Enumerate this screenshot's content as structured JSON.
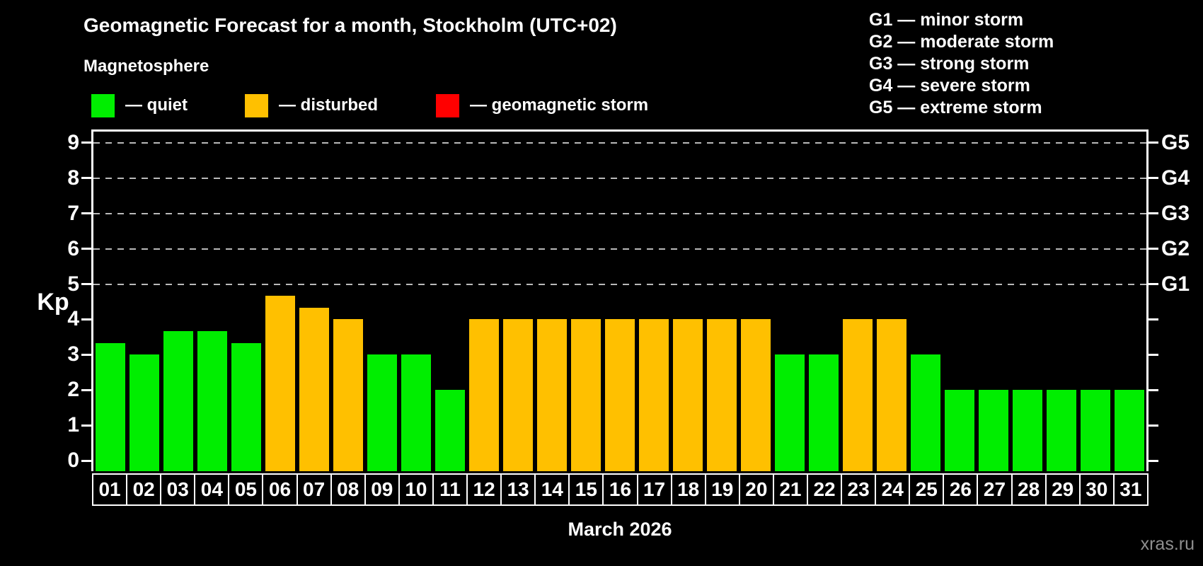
{
  "header": {
    "title": "Geomagnetic Forecast for a month, Stockholm (UTC+02)",
    "subtitle": "Magnetosphere"
  },
  "status_legend": [
    {
      "key": "quiet",
      "label": "— quiet",
      "color": "#00ee00"
    },
    {
      "key": "disturbed",
      "label": "— disturbed",
      "color": "#ffc000"
    },
    {
      "key": "storm",
      "label": "— geomagnetic storm",
      "color": "#ff0000"
    }
  ],
  "storm_scale_legend": [
    "G1 — minor storm",
    "G2 — moderate storm",
    "G3 — strong storm",
    "G4 — severe storm",
    "G5 — extreme storm"
  ],
  "watermark": "xras.ru",
  "chart_data": {
    "type": "bar",
    "title": "Geomagnetic Forecast for a month, Stockholm (UTC+02)",
    "xlabel": "March 2026",
    "ylabel": "Kp",
    "ylim": [
      0,
      9
    ],
    "y_ticks": [
      0,
      1,
      2,
      3,
      4,
      5,
      6,
      7,
      8,
      9
    ],
    "gridlines_at": [
      5,
      6,
      7,
      8,
      9
    ],
    "grid": "dashed, only at storm levels 5-9",
    "legend_position": "top",
    "right_axis_labels": [
      {
        "kp": 5,
        "label": "G1"
      },
      {
        "kp": 6,
        "label": "G2"
      },
      {
        "kp": 7,
        "label": "G3"
      },
      {
        "kp": 8,
        "label": "G4"
      },
      {
        "kp": 9,
        "label": "G5"
      }
    ],
    "categories": [
      "01",
      "02",
      "03",
      "04",
      "05",
      "06",
      "07",
      "08",
      "09",
      "10",
      "11",
      "12",
      "13",
      "14",
      "15",
      "16",
      "17",
      "18",
      "19",
      "20",
      "21",
      "22",
      "23",
      "24",
      "25",
      "26",
      "27",
      "28",
      "29",
      "30",
      "31"
    ],
    "series": [
      {
        "name": "Kp forecast",
        "values": [
          3.33,
          3,
          3.67,
          3.67,
          3.33,
          4.67,
          4.33,
          4,
          3,
          3,
          2,
          4,
          4,
          4,
          4,
          4,
          4,
          4,
          4,
          4,
          3,
          3,
          4,
          4,
          3,
          2,
          2,
          2,
          2,
          2,
          2
        ],
        "statuses": [
          "quiet",
          "quiet",
          "quiet",
          "quiet",
          "quiet",
          "disturbed",
          "disturbed",
          "disturbed",
          "quiet",
          "quiet",
          "quiet",
          "disturbed",
          "disturbed",
          "disturbed",
          "disturbed",
          "disturbed",
          "disturbed",
          "disturbed",
          "disturbed",
          "disturbed",
          "quiet",
          "quiet",
          "disturbed",
          "disturbed",
          "quiet",
          "quiet",
          "quiet",
          "quiet",
          "quiet",
          "quiet",
          "quiet"
        ]
      }
    ],
    "colors": {
      "quiet": "#00ee00",
      "disturbed": "#ffc000",
      "storm": "#ff0000"
    }
  }
}
